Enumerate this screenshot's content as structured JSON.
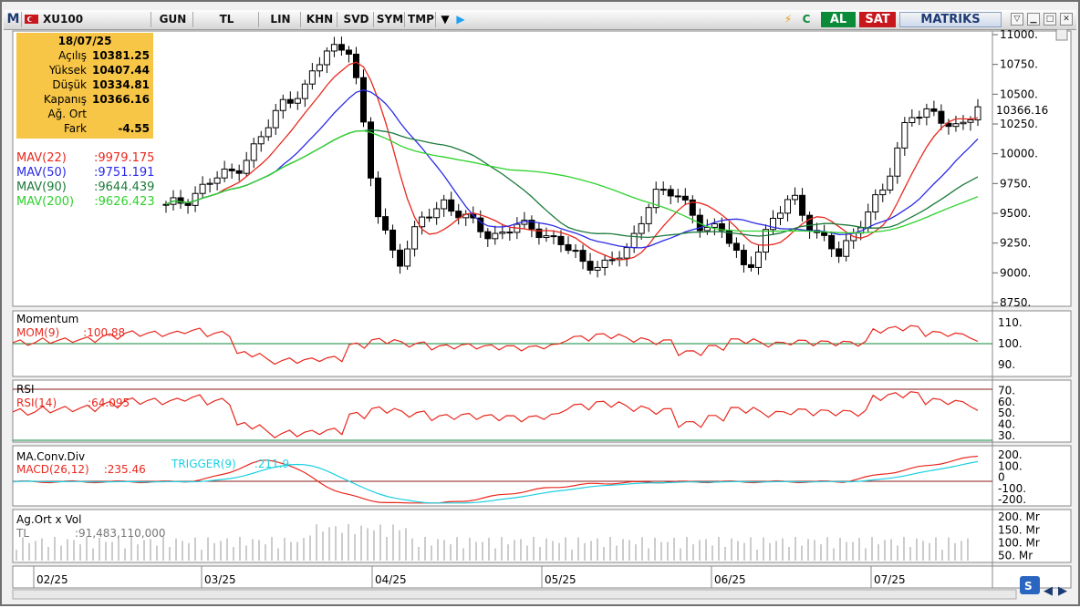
{
  "toolbar": {
    "app_letter": "M",
    "symbol": "XU100",
    "buttons": [
      "GUN",
      "TL",
      "LIN",
      "KHN",
      "SVD",
      "SYM",
      "TMP"
    ],
    "buy_label": "AL",
    "sell_label": "SAT",
    "brand": "MATRIKS"
  },
  "ohlc": {
    "date": "18/07/25",
    "rows": [
      {
        "label": "Açılış",
        "value": "10381.25"
      },
      {
        "label": "Yüksek",
        "value": "10407.44"
      },
      {
        "label": "Düşük",
        "value": "10334.81"
      },
      {
        "label": "Kapanış",
        "value": "10366.16"
      },
      {
        "label": "Ağ. Ort",
        "value": ""
      },
      {
        "label": "Fark",
        "value": "-4.55"
      }
    ]
  },
  "mav": [
    {
      "label": "MAV(22)",
      "value": ":9979.175",
      "color": "#e8281e"
    },
    {
      "label": "MAV(50)",
      "value": ":9751.191",
      "color": "#2a2ae8"
    },
    {
      "label": "MAV(90)",
      "value": ":9644.439",
      "color": "#1b7a3a"
    },
    {
      "label": "MAV(200)",
      "value": ":9626.423",
      "color": "#2ed22e"
    }
  ],
  "price_axis": {
    "ticks": [
      "11000.",
      "10750.",
      "10500.",
      "10250.",
      "10000.",
      "9750.",
      "9500.",
      "9250.",
      "9000.",
      "8750."
    ],
    "last": "10366.16"
  },
  "momentum": {
    "title": "Momentum",
    "label": "MOM(9)",
    "value": ":100.88",
    "ticks": [
      "110.",
      "100.",
      "90."
    ]
  },
  "rsi": {
    "title": "RSI",
    "label": "RSI(14)",
    "value": ":64.095",
    "ticks": [
      "70.",
      "60.",
      "50.",
      "40.",
      "30."
    ]
  },
  "macd": {
    "title": "MA.Conv.Div",
    "label": "MACD(26,12)",
    "value": ":235.46",
    "trigger_label": "TRIGGER(9)",
    "trigger_value": ":211.9",
    "ticks": [
      "200.",
      "100.",
      "0",
      "-100.",
      "-200."
    ]
  },
  "volume": {
    "title": "Ag.Ort x Vol",
    "label": "TL",
    "value": ":91,483,110,000",
    "ticks": [
      "200. Mr",
      "150. Mr",
      "100. Mr",
      "50. Mr"
    ]
  },
  "dates": [
    "02/25",
    "03/25",
    "04/25",
    "05/25",
    "06/25",
    "07/25"
  ],
  "chart_data": {
    "type": "candlestick",
    "symbol": "XU100",
    "ylim": [
      8750,
      11000
    ],
    "series": [
      {
        "name": "MAV(22)",
        "last": 9979.175
      },
      {
        "name": "MAV(50)",
        "last": 9751.191
      },
      {
        "name": "MAV(90)",
        "last": 9644.439
      },
      {
        "name": "MAV(200)",
        "last": 9626.423
      }
    ],
    "close_path": [
      9550,
      9630,
      9780,
      9860,
      10100,
      10420,
      10560,
      10880,
      10900,
      9560,
      9080,
      9430,
      9600,
      9440,
      9300,
      9400,
      9350,
      9270,
      9060,
      9090,
      9190,
      9700,
      9650,
      9420,
      9350,
      9020,
      9380,
      9660,
      9330,
      9150,
      9450,
      9700,
      10350,
      10320,
      10230,
      10366
    ],
    "x_ticks": [
      "02/25",
      "03/25",
      "04/25",
      "05/25",
      "06/25",
      "07/25"
    ]
  }
}
